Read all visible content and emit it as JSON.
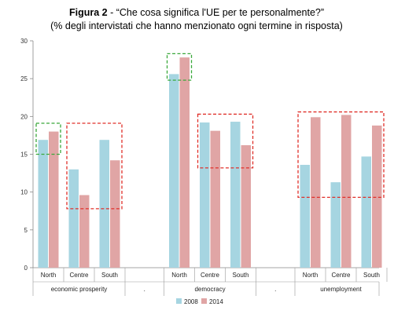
{
  "title_bold": "Figura 2",
  "title_rest": " - “Che cosa significa l'UE per te personalmente?”",
  "subtitle": "(% degli intervistati che hanno menzionato ogni termine in risposta)",
  "chart_data": {
    "type": "bar",
    "title": "Figura 2 - “Che cosa significa l'UE per te personalmente?”",
    "subtitle": "(% degli intervistati che hanno menzionato ogni termine in risposta)",
    "ylim": [
      0,
      30
    ],
    "yticks": [
      0,
      5,
      10,
      15,
      20,
      25,
      30
    ],
    "grid": false,
    "legend_position": "bottom",
    "groups": [
      {
        "label": "economic prosperity",
        "categories": [
          "North",
          "Centre",
          "South"
        ]
      },
      {
        "label": ".",
        "categories": []
      },
      {
        "label": "democracy",
        "categories": [
          "North",
          "Centre",
          "South"
        ]
      },
      {
        "label": ".",
        "categories": []
      },
      {
        "label": "unemployment",
        "categories": [
          "North",
          "Centre",
          "South"
        ]
      }
    ],
    "series": [
      {
        "name": "2008",
        "color": "#a6d5e1",
        "values": [
          16.9,
          13.0,
          16.9,
          25.6,
          19.2,
          19.3,
          13.6,
          11.3,
          14.7
        ]
      },
      {
        "name": "2014",
        "color": "#e0a5a5",
        "values": [
          18.0,
          9.6,
          14.2,
          27.8,
          18.1,
          16.2,
          19.9,
          20.2,
          18.8
        ]
      }
    ],
    "highlights": [
      {
        "group": 0,
        "from": 0,
        "to": 0,
        "ymin": 15,
        "ymax": 19.1,
        "color": "green"
      },
      {
        "group": 0,
        "from": 1,
        "to": 2,
        "ymin": 7.8,
        "ymax": 19.1,
        "color": "red"
      },
      {
        "group": 2,
        "from": 0,
        "to": 0,
        "ymin": 24.8,
        "ymax": 28.3,
        "color": "green"
      },
      {
        "group": 2,
        "from": 1,
        "to": 2,
        "ymin": 13.2,
        "ymax": 20.3,
        "color": "red"
      },
      {
        "group": 4,
        "from": 0,
        "to": 2,
        "ymin": 9.3,
        "ymax": 20.6,
        "color": "red"
      }
    ],
    "highlight_colors": {
      "green": "#3aa83a",
      "red": "#e0302a"
    }
  }
}
